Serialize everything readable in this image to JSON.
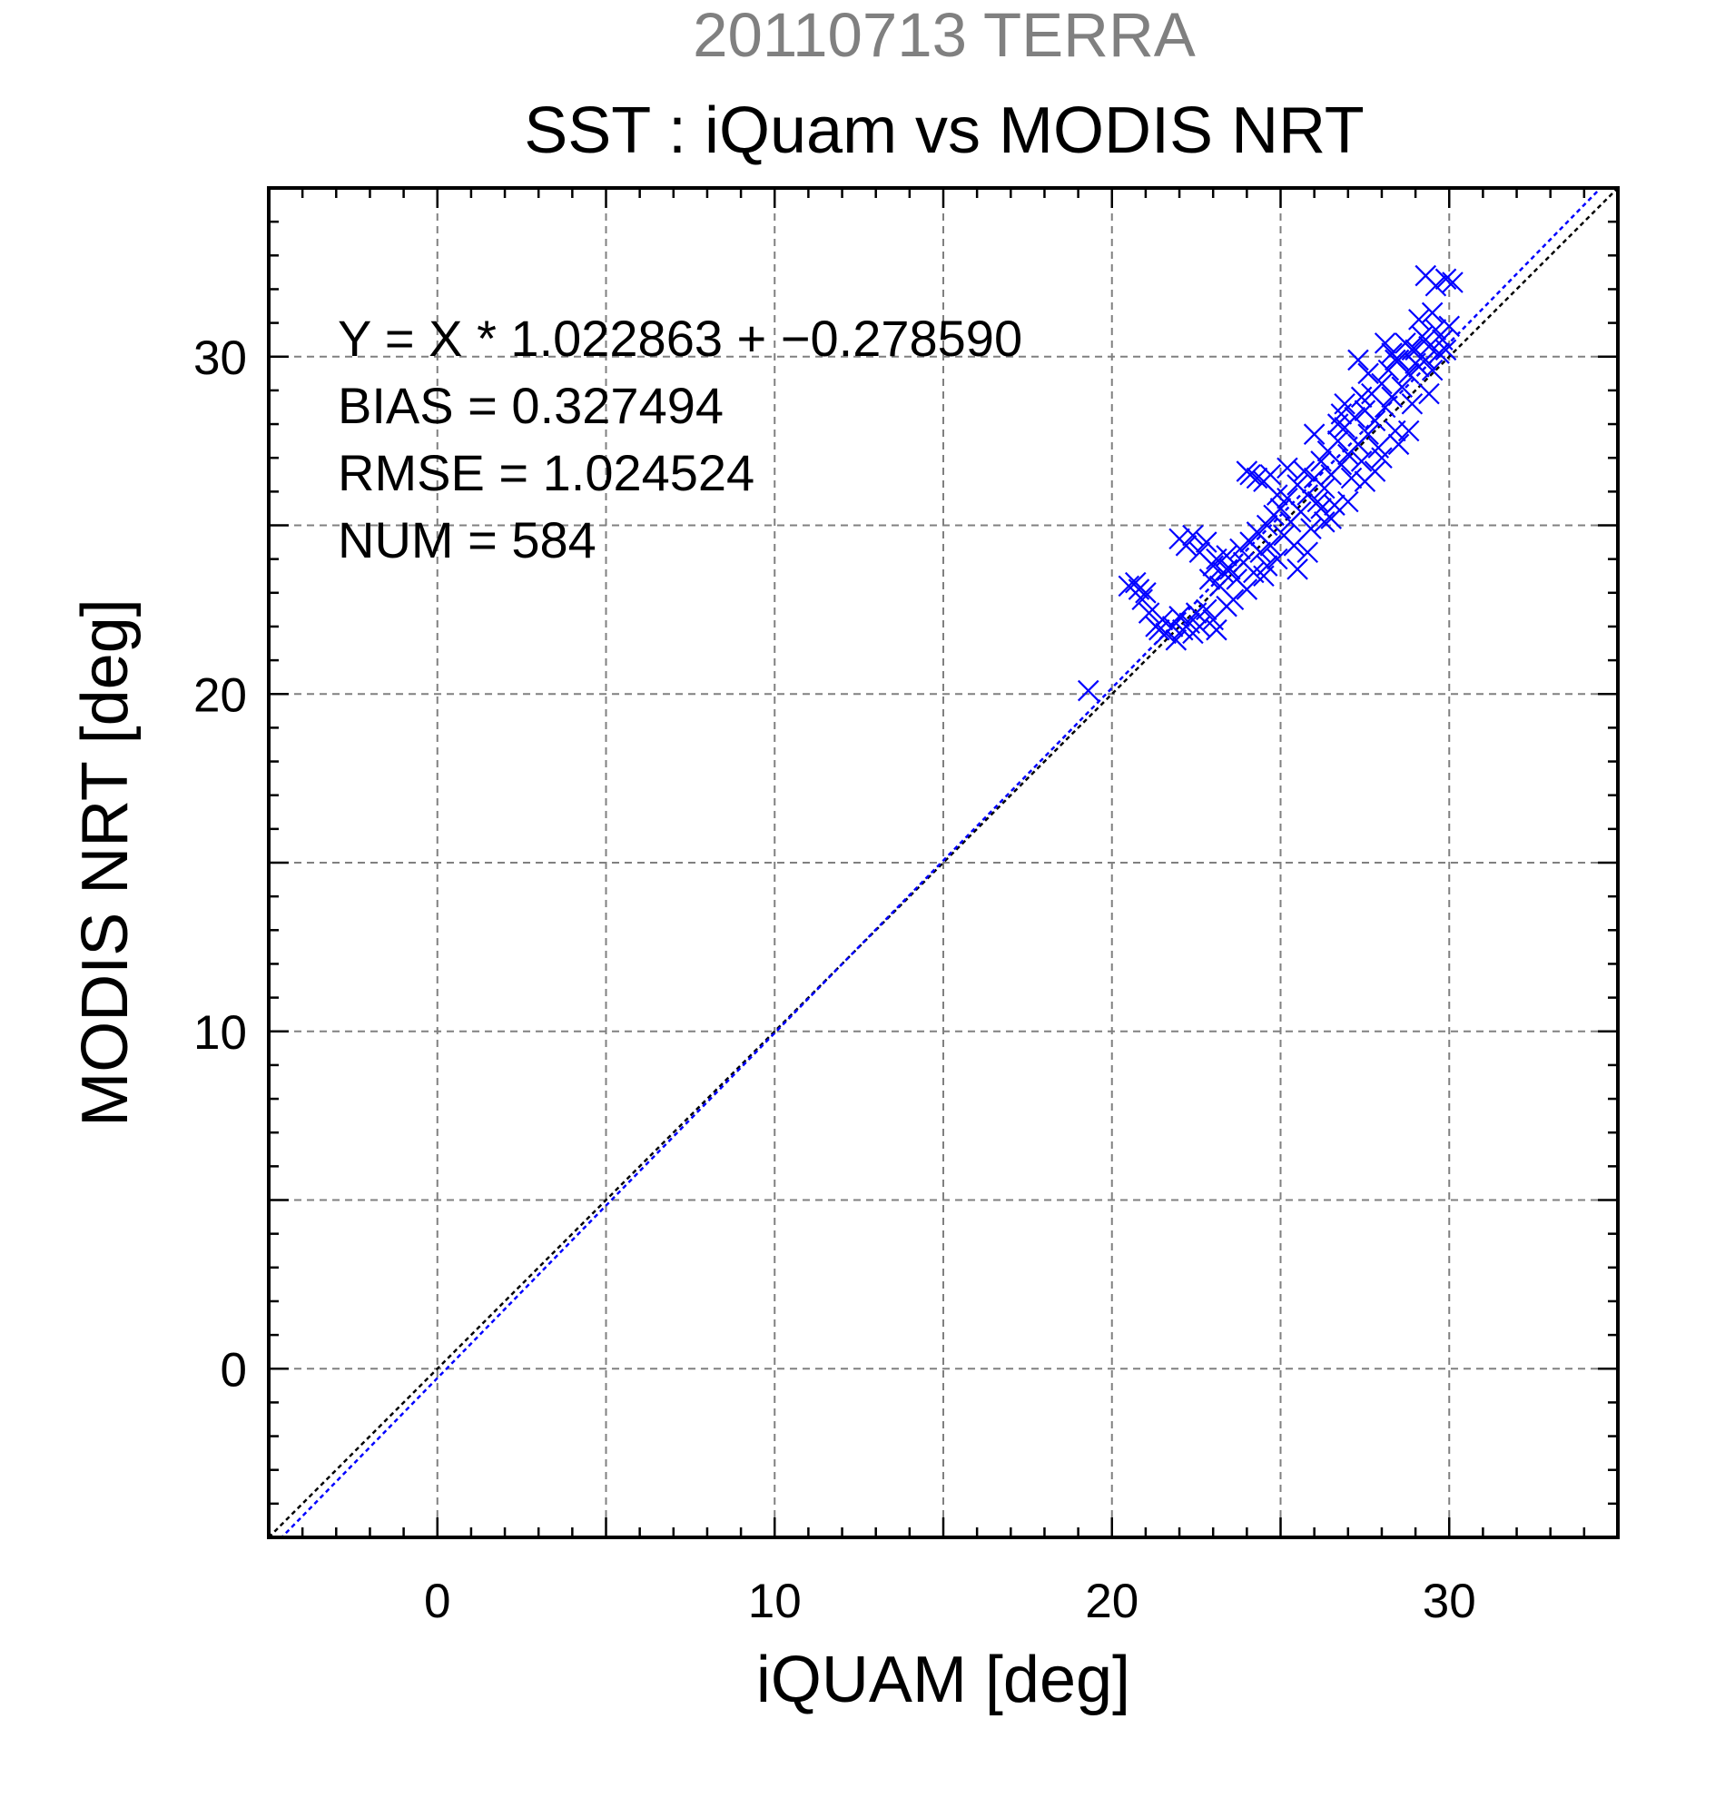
{
  "chart_data": {
    "type": "scatter",
    "subtitle": "20110713 TERRA",
    "title": "SST : iQuam vs MODIS NRT",
    "xlabel": "iQUAM [deg]",
    "ylabel": "MODIS NRT [deg]",
    "xlim": [
      -5,
      35
    ],
    "ylim": [
      -5,
      35
    ],
    "xticks": [
      0,
      10,
      20,
      30
    ],
    "yticks": [
      0,
      10,
      20,
      30
    ],
    "grid": true,
    "colors": {
      "points": "#0000ff",
      "fit_line": "#0000ff",
      "identity_line": "#000000",
      "subtitle": "#808080",
      "grid": "#808080"
    },
    "stats": {
      "equation": "Y = X * 1.022863 + −0.278590",
      "bias": "BIAS = 0.327494",
      "rmse": "RMSE = 1.024524",
      "num": "NUM = 584"
    },
    "fit": {
      "slope": 1.022863,
      "intercept": -0.27859
    },
    "marker": "x",
    "series": [
      {
        "values": [
          [
            19.3,
            20.1
          ],
          [
            20.5,
            23.2
          ],
          [
            20.7,
            23.3
          ],
          [
            20.8,
            23.1
          ],
          [
            20.9,
            22.8
          ],
          [
            21.0,
            23.0
          ],
          [
            21.1,
            22.4
          ],
          [
            21.3,
            22.0
          ],
          [
            21.4,
            21.9
          ],
          [
            21.5,
            22.2
          ],
          [
            21.6,
            21.8
          ],
          [
            21.8,
            22.0
          ],
          [
            21.9,
            21.6
          ],
          [
            22.0,
            22.3
          ],
          [
            22.1,
            21.9
          ],
          [
            22.3,
            22.1
          ],
          [
            22.4,
            21.8
          ],
          [
            22.5,
            22.4
          ],
          [
            22.6,
            22.0
          ],
          [
            22.8,
            22.5
          ],
          [
            23.0,
            22.2
          ],
          [
            23.1,
            21.9
          ],
          [
            22.0,
            24.6
          ],
          [
            22.2,
            24.4
          ],
          [
            22.4,
            24.7
          ],
          [
            22.6,
            24.2
          ],
          [
            22.8,
            24.5
          ],
          [
            22.9,
            23.4
          ],
          [
            23.0,
            23.8
          ],
          [
            23.1,
            24.0
          ],
          [
            23.2,
            23.2
          ],
          [
            23.3,
            23.6
          ],
          [
            23.4,
            24.1
          ],
          [
            23.5,
            23.7
          ],
          [
            23.6,
            22.8
          ],
          [
            23.7,
            23.4
          ],
          [
            23.8,
            24.3
          ],
          [
            23.9,
            23.9
          ],
          [
            24.0,
            23.1
          ],
          [
            24.1,
            24.5
          ],
          [
            24.2,
            23.6
          ],
          [
            24.3,
            24.8
          ],
          [
            24.4,
            24.2
          ],
          [
            24.5,
            23.5
          ],
          [
            24.6,
            25.0
          ],
          [
            24.7,
            24.4
          ],
          [
            24.8,
            25.3
          ],
          [
            24.9,
            24.0
          ],
          [
            25.0,
            25.5
          ],
          [
            25.1,
            24.7
          ],
          [
            25.2,
            25.8
          ],
          [
            25.3,
            25.1
          ],
          [
            25.4,
            24.4
          ],
          [
            25.5,
            26.2
          ],
          [
            25.6,
            25.4
          ],
          [
            25.7,
            26.6
          ],
          [
            25.8,
            25.9
          ],
          [
            25.9,
            24.9
          ],
          [
            24.0,
            26.6
          ],
          [
            24.3,
            26.4
          ],
          [
            24.1,
            26.5
          ],
          [
            24.5,
            26.3
          ],
          [
            24.7,
            26.5
          ],
          [
            25.8,
            24.2
          ],
          [
            26.0,
            26.4
          ],
          [
            26.1,
            25.7
          ],
          [
            26.2,
            26.9
          ],
          [
            26.3,
            26.1
          ],
          [
            26.4,
            27.2
          ],
          [
            26.5,
            26.5
          ],
          [
            26.6,
            25.6
          ],
          [
            26.7,
            27.5
          ],
          [
            26.8,
            26.8
          ],
          [
            26.9,
            27.9
          ],
          [
            27.0,
            27.1
          ],
          [
            27.1,
            26.4
          ],
          [
            27.2,
            28.2
          ],
          [
            27.3,
            27.4
          ],
          [
            27.4,
            26.9
          ],
          [
            27.5,
            28.4
          ],
          [
            27.6,
            27.7
          ],
          [
            27.7,
            28.9
          ],
          [
            27.8,
            28.1
          ],
          [
            27.9,
            27.3
          ],
          [
            28.0,
            29.2
          ],
          [
            28.1,
            28.5
          ],
          [
            28.2,
            29.6
          ],
          [
            28.3,
            28.8
          ],
          [
            28.4,
            27.8
          ],
          [
            28.5,
            29.9
          ],
          [
            28.6,
            29.1
          ],
          [
            28.7,
            30.4
          ],
          [
            28.8,
            29.5
          ],
          [
            28.9,
            28.6
          ],
          [
            29.0,
            30.2
          ],
          [
            29.1,
            29.7
          ],
          [
            29.2,
            30.6
          ],
          [
            29.3,
            29.9
          ],
          [
            29.4,
            30.3
          ],
          [
            29.5,
            29.6
          ],
          [
            29.6,
            30.8
          ],
          [
            29.7,
            30.1
          ],
          [
            29.8,
            30.5
          ],
          [
            29.9,
            30.2
          ],
          [
            30.0,
            30.9
          ],
          [
            29.3,
            32.4
          ],
          [
            29.6,
            32.1
          ],
          [
            29.9,
            32.3
          ],
          [
            30.1,
            32.2
          ],
          [
            28.3,
            30.1
          ],
          [
            27.6,
            29.5
          ],
          [
            26.8,
            28.3
          ],
          [
            26.0,
            27.7
          ],
          [
            27.0,
            25.7
          ],
          [
            27.8,
            26.6
          ],
          [
            28.5,
            27.4
          ],
          [
            26.5,
            25.2
          ],
          [
            25.5,
            23.7
          ],
          [
            26.2,
            25.5
          ],
          [
            27.4,
            28.8
          ],
          [
            28.8,
            27.8
          ],
          [
            29.4,
            28.9
          ],
          [
            28.1,
            30.4
          ],
          [
            27.3,
            29.9
          ],
          [
            26.9,
            28.6
          ],
          [
            29.1,
            31.1
          ],
          [
            29.5,
            31.3
          ],
          [
            24.6,
            23.8
          ],
          [
            23.4,
            22.6
          ],
          [
            24.9,
            25.9
          ],
          [
            25.2,
            26.7
          ],
          [
            26.7,
            28.0
          ],
          [
            28.4,
            29.9
          ],
          [
            28.9,
            30.2
          ],
          [
            27.5,
            26.3
          ],
          [
            26.3,
            25.1
          ],
          [
            28.0,
            27.0
          ],
          [
            29.0,
            29.8
          ]
        ]
      }
    ]
  }
}
